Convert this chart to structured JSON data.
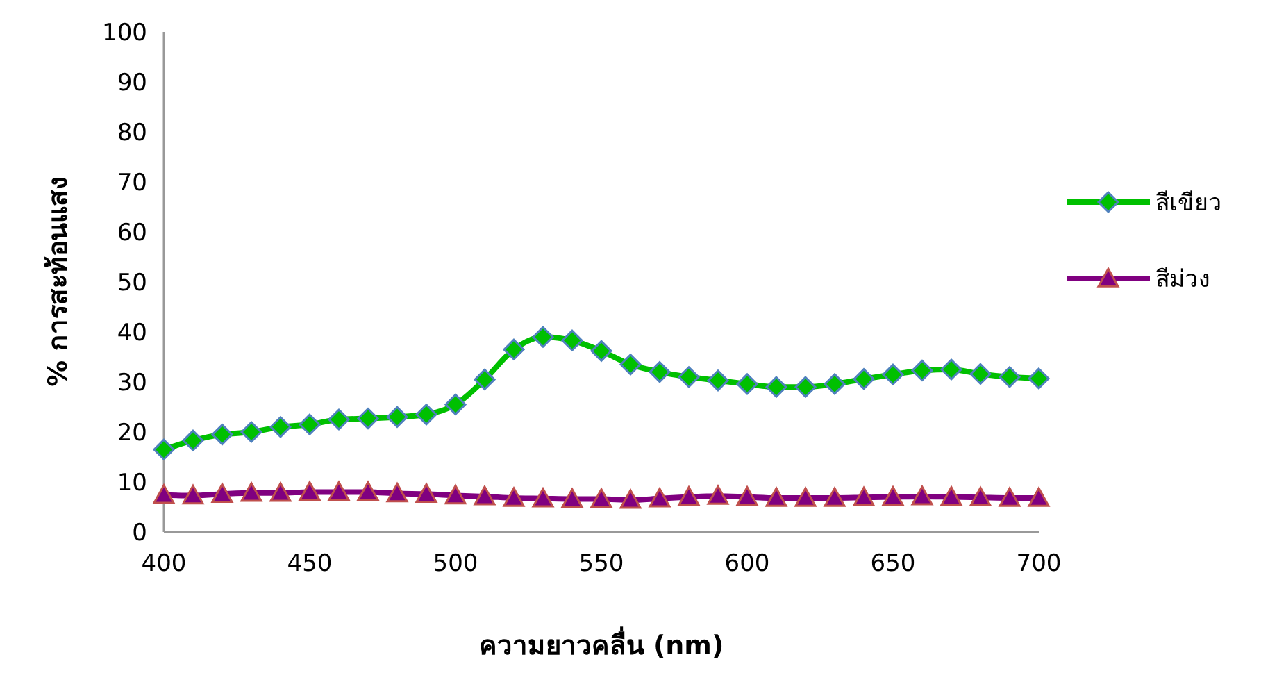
{
  "chart_data": {
    "type": "line",
    "xlabel": "ความยาวคลื่น (nm)",
    "ylabel": "% การสะท้อนแสง",
    "x": [
      400,
      410,
      420,
      430,
      440,
      450,
      460,
      470,
      480,
      490,
      500,
      510,
      520,
      530,
      540,
      550,
      560,
      570,
      580,
      590,
      600,
      610,
      620,
      630,
      640,
      650,
      660,
      670,
      680,
      690,
      700
    ],
    "series": [
      {
        "name": "สีเขียว",
        "color": "#00c000",
        "marker": "diamond",
        "values": [
          16.5,
          18.3,
          19.5,
          20,
          21,
          21.5,
          22.5,
          22.7,
          23,
          23.5,
          25.5,
          30.5,
          36.5,
          39,
          38.3,
          36.2,
          33.5,
          32,
          31,
          30.3,
          29.6,
          29,
          29,
          29.6,
          30.6,
          31.5,
          32.3,
          32.5,
          31.6,
          31,
          30.7
        ]
      },
      {
        "name": "สีม่วง",
        "color": "#800080",
        "marker": "triangle",
        "values": [
          7.4,
          7.3,
          7.6,
          7.8,
          7.8,
          8,
          8,
          8,
          7.7,
          7.6,
          7.3,
          7.1,
          6.8,
          6.7,
          6.6,
          6.6,
          6.4,
          6.7,
          7,
          7.2,
          7,
          6.8,
          6.8,
          6.8,
          6.9,
          7,
          7.1,
          7,
          6.9,
          6.8,
          6.8
        ]
      }
    ],
    "xlim": [
      400,
      700
    ],
    "xticks": [
      400,
      450,
      500,
      550,
      600,
      650,
      700
    ],
    "ylim": [
      0,
      100
    ],
    "yticks": [
      0,
      10,
      20,
      30,
      40,
      50,
      60,
      70,
      80,
      90,
      100
    ],
    "grid": false,
    "legend": "right",
    "line_style": "solid"
  }
}
